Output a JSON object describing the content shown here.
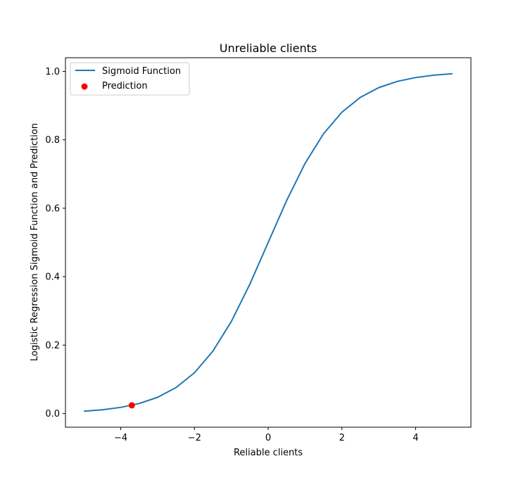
{
  "chart_data": {
    "type": "line",
    "title": "Unreliable clients",
    "xlabel": "Reliable clients",
    "ylabel": "Logistic Regression Sigmoid Function and Prediction",
    "xlim": [
      -5.5,
      5.5
    ],
    "ylim": [
      -0.04,
      1.04
    ],
    "x_ticks": [
      -4,
      -2,
      0,
      2,
      4
    ],
    "x_tick_labels": [
      "−4",
      "−2",
      "0",
      "2",
      "4"
    ],
    "y_ticks": [
      0.0,
      0.2,
      0.4,
      0.6,
      0.8,
      1.0
    ],
    "y_tick_labels": [
      "0.0",
      "0.2",
      "0.4",
      "0.6",
      "0.8",
      "1.0"
    ],
    "grid": false,
    "legend_position": "top-left",
    "series": [
      {
        "name": "Sigmoid Function",
        "kind": "line",
        "color": "#1f77b4",
        "x": [
          -5.0,
          -4.5,
          -4.0,
          -3.5,
          -3.0,
          -2.5,
          -2.0,
          -1.5,
          -1.0,
          -0.5,
          0.0,
          0.5,
          1.0,
          1.5,
          2.0,
          2.5,
          3.0,
          3.5,
          4.0,
          4.5,
          5.0
        ],
        "y": [
          0.0067,
          0.011,
          0.018,
          0.0293,
          0.0474,
          0.0759,
          0.1192,
          0.1824,
          0.2689,
          0.3775,
          0.5,
          0.6225,
          0.7311,
          0.8176,
          0.8808,
          0.9241,
          0.9526,
          0.9707,
          0.982,
          0.989,
          0.9933
        ]
      },
      {
        "name": "Prediction",
        "kind": "scatter",
        "color": "#ff0000",
        "x": [
          -3.7
        ],
        "y": [
          0.024
        ]
      }
    ]
  }
}
